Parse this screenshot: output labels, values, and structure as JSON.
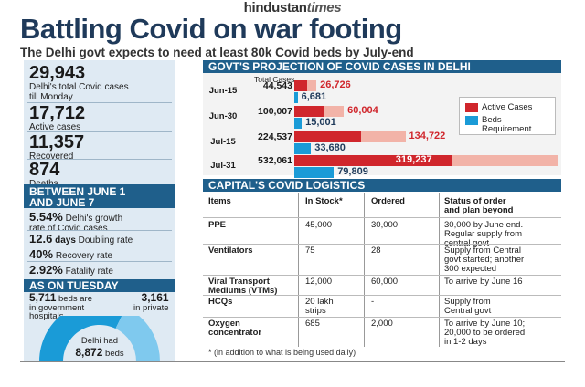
{
  "masthead": {
    "brand_main": "hindustan",
    "brand_times": "times"
  },
  "headline": "Battling Covid on war footing",
  "subheadline": "The Delhi govt expects to need at least 80k Covid beds by July-end",
  "left_panel": {
    "stats": [
      {
        "value": "29,943",
        "label_1": "Delhi's total Covid cases",
        "label_2": "till Monday"
      },
      {
        "value": "17,712",
        "label_1": "Active cases",
        "label_2": ""
      },
      {
        "value": "11,357",
        "label_1": "Recovered",
        "label_2": ""
      },
      {
        "value": "874",
        "label_1": "Deaths",
        "label_2": ""
      }
    ],
    "between_heading_1": "BETWEEN JUNE 1",
    "between_heading_2": "AND JUNE 7",
    "rates": [
      {
        "value": "5.54%",
        "label_1": "Delhi's growth",
        "label_2": "rate of Covid cases"
      },
      {
        "value": "12.6",
        "unit": "days",
        "label_1": "Doubling rate",
        "label_2": ""
      },
      {
        "value": "40%",
        "label_1": "Recovery rate",
        "label_2": ""
      },
      {
        "value": "2.92%",
        "label_1": "Fatality rate",
        "label_2": ""
      }
    ],
    "tuesday_heading": "AS ON TUESDAY",
    "govt_beds_value": "5,711",
    "govt_beds_label_1": "beds are",
    "govt_beds_label_2": "in government",
    "govt_beds_label_3": "hospitals",
    "private_beds_value": "3,161",
    "private_beds_label": "in private",
    "total_beds_label_1": "Delhi had",
    "total_beds_value": "8,872",
    "total_beds_label_2": "beds",
    "gauge_govt_share": 0.6437,
    "colors": {
      "band": "#1f5f8b",
      "gauge_govt": "#1a9bd7",
      "gauge_private": "#7fc9ee"
    }
  },
  "projection": {
    "title": "GOVT'S PROJECTION OF COVID CASES IN DELHI",
    "total_cases_header_1": "Total Cases",
    "legend": [
      {
        "label_1": "Active Cases",
        "label_2": "",
        "color": "#d0262c"
      },
      {
        "label_1": "Beds",
        "label_2": "Requirement",
        "color": "#1a9bd7"
      }
    ]
  },
  "chart_data": {
    "type": "bar",
    "title": "GOVT'S PROJECTION OF COVID CASES IN DELHI",
    "categories": [
      "Jun-15",
      "Jun-30",
      "Jul-15",
      "Jul-31"
    ],
    "total_cases_labels": [
      "44,543",
      "100,007",
      "224,537",
      "532,061"
    ],
    "total_cases": [
      44543,
      100007,
      224537,
      532061
    ],
    "series": [
      {
        "name": "Active Cases",
        "labels": [
          "26,726",
          "60,004",
          "134,722",
          "319,237"
        ],
        "values": [
          26726,
          60004,
          134722,
          319237
        ],
        "color": "#d0262c"
      },
      {
        "name": "Beds Requirement",
        "labels": [
          "6,681",
          "15,001",
          "33,680",
          "79,809"
        ],
        "values": [
          6681,
          15001,
          33680,
          79809
        ],
        "color": "#1a9bd7"
      }
    ],
    "total_color": "#f2b3a8",
    "xlim": [
      0,
      532061
    ],
    "legend_position": "right"
  },
  "logistics": {
    "title": "CAPITAL'S COVID LOGISTICS",
    "headers": {
      "items": "Items",
      "in_stock": "In Stock*",
      "ordered": "Ordered",
      "status_1": "Status of order",
      "status_2": "and plan beyond"
    },
    "rows": [
      {
        "item_1": "PPE",
        "item_2": "",
        "stock_1": "45,000",
        "stock_2": "",
        "ordered": "30,000",
        "status": [
          "30,000 by June end.",
          "Regular supply from",
          "central govt"
        ]
      },
      {
        "item_1": "Ventilators",
        "item_2": "",
        "stock_1": "75",
        "stock_2": "",
        "ordered": "28",
        "status": [
          "Supply from Central",
          "govt started; another",
          "300 expected"
        ]
      },
      {
        "item_1": "Viral Transport",
        "item_2": "Mediums (VTMs)",
        "stock_1": "12,000",
        "stock_2": "",
        "ordered": "60,000",
        "status": [
          "To arrive by June 16",
          "",
          ""
        ]
      },
      {
        "item_1": "HCQs",
        "item_2": "",
        "stock_1": "20 lakh",
        "stock_2": "strips",
        "ordered": "-",
        "status": [
          "Supply from",
          "Central govt",
          ""
        ]
      },
      {
        "item_1": "Oxygen",
        "item_2": "concentrator",
        "stock_1": "685",
        "stock_2": "",
        "ordered": "2,000",
        "status": [
          "To arrive by June 10;",
          "20,000 to be ordered",
          "in 1-2 days"
        ]
      }
    ],
    "footnote": "* (in addition to what is being used daily)"
  }
}
